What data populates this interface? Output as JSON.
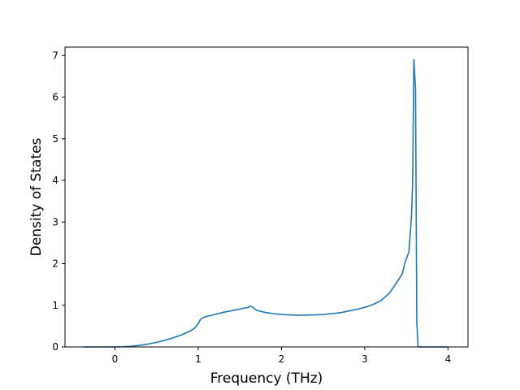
{
  "chart_data": {
    "type": "line",
    "title": "",
    "xlabel": "Frequency (THz)",
    "ylabel": "Density of States",
    "xlim": [
      -0.6,
      4.24
    ],
    "ylim": [
      0,
      7.2
    ],
    "xticks": [
      0,
      1,
      2,
      3,
      4
    ],
    "yticks": [
      0,
      1,
      2,
      3,
      4,
      5,
      6,
      7
    ],
    "grid": false,
    "legend": "none",
    "series": [
      {
        "color": "#1f77b4",
        "x": [
          -0.38,
          -0.1,
          0.0,
          0.1,
          0.2,
          0.3,
          0.4,
          0.5,
          0.6,
          0.7,
          0.8,
          0.9,
          0.95,
          1.0,
          1.02,
          1.05,
          1.1,
          1.2,
          1.3,
          1.4,
          1.5,
          1.6,
          1.62,
          1.65,
          1.7,
          1.8,
          1.9,
          2.0,
          2.2,
          2.4,
          2.5,
          2.6,
          2.7,
          2.8,
          2.9,
          3.0,
          3.05,
          3.1,
          3.2,
          3.3,
          3.35,
          3.4,
          3.45,
          3.48,
          3.5,
          3.53,
          3.56,
          3.575,
          3.59,
          3.61,
          3.625,
          3.64,
          3.655,
          3.7,
          4.0
        ],
        "y": [
          0.0,
          0.0,
          0.0,
          0.005,
          0.015,
          0.04,
          0.07,
          0.11,
          0.16,
          0.22,
          0.29,
          0.38,
          0.44,
          0.55,
          0.64,
          0.7,
          0.73,
          0.78,
          0.83,
          0.87,
          0.91,
          0.95,
          0.98,
          0.96,
          0.88,
          0.83,
          0.8,
          0.78,
          0.76,
          0.77,
          0.78,
          0.8,
          0.82,
          0.86,
          0.9,
          0.95,
          0.98,
          1.02,
          1.12,
          1.3,
          1.45,
          1.6,
          1.75,
          2.0,
          2.12,
          2.28,
          3.1,
          3.9,
          6.9,
          6.2,
          0.6,
          0.02,
          0.0,
          0.0,
          0.0
        ]
      }
    ]
  }
}
